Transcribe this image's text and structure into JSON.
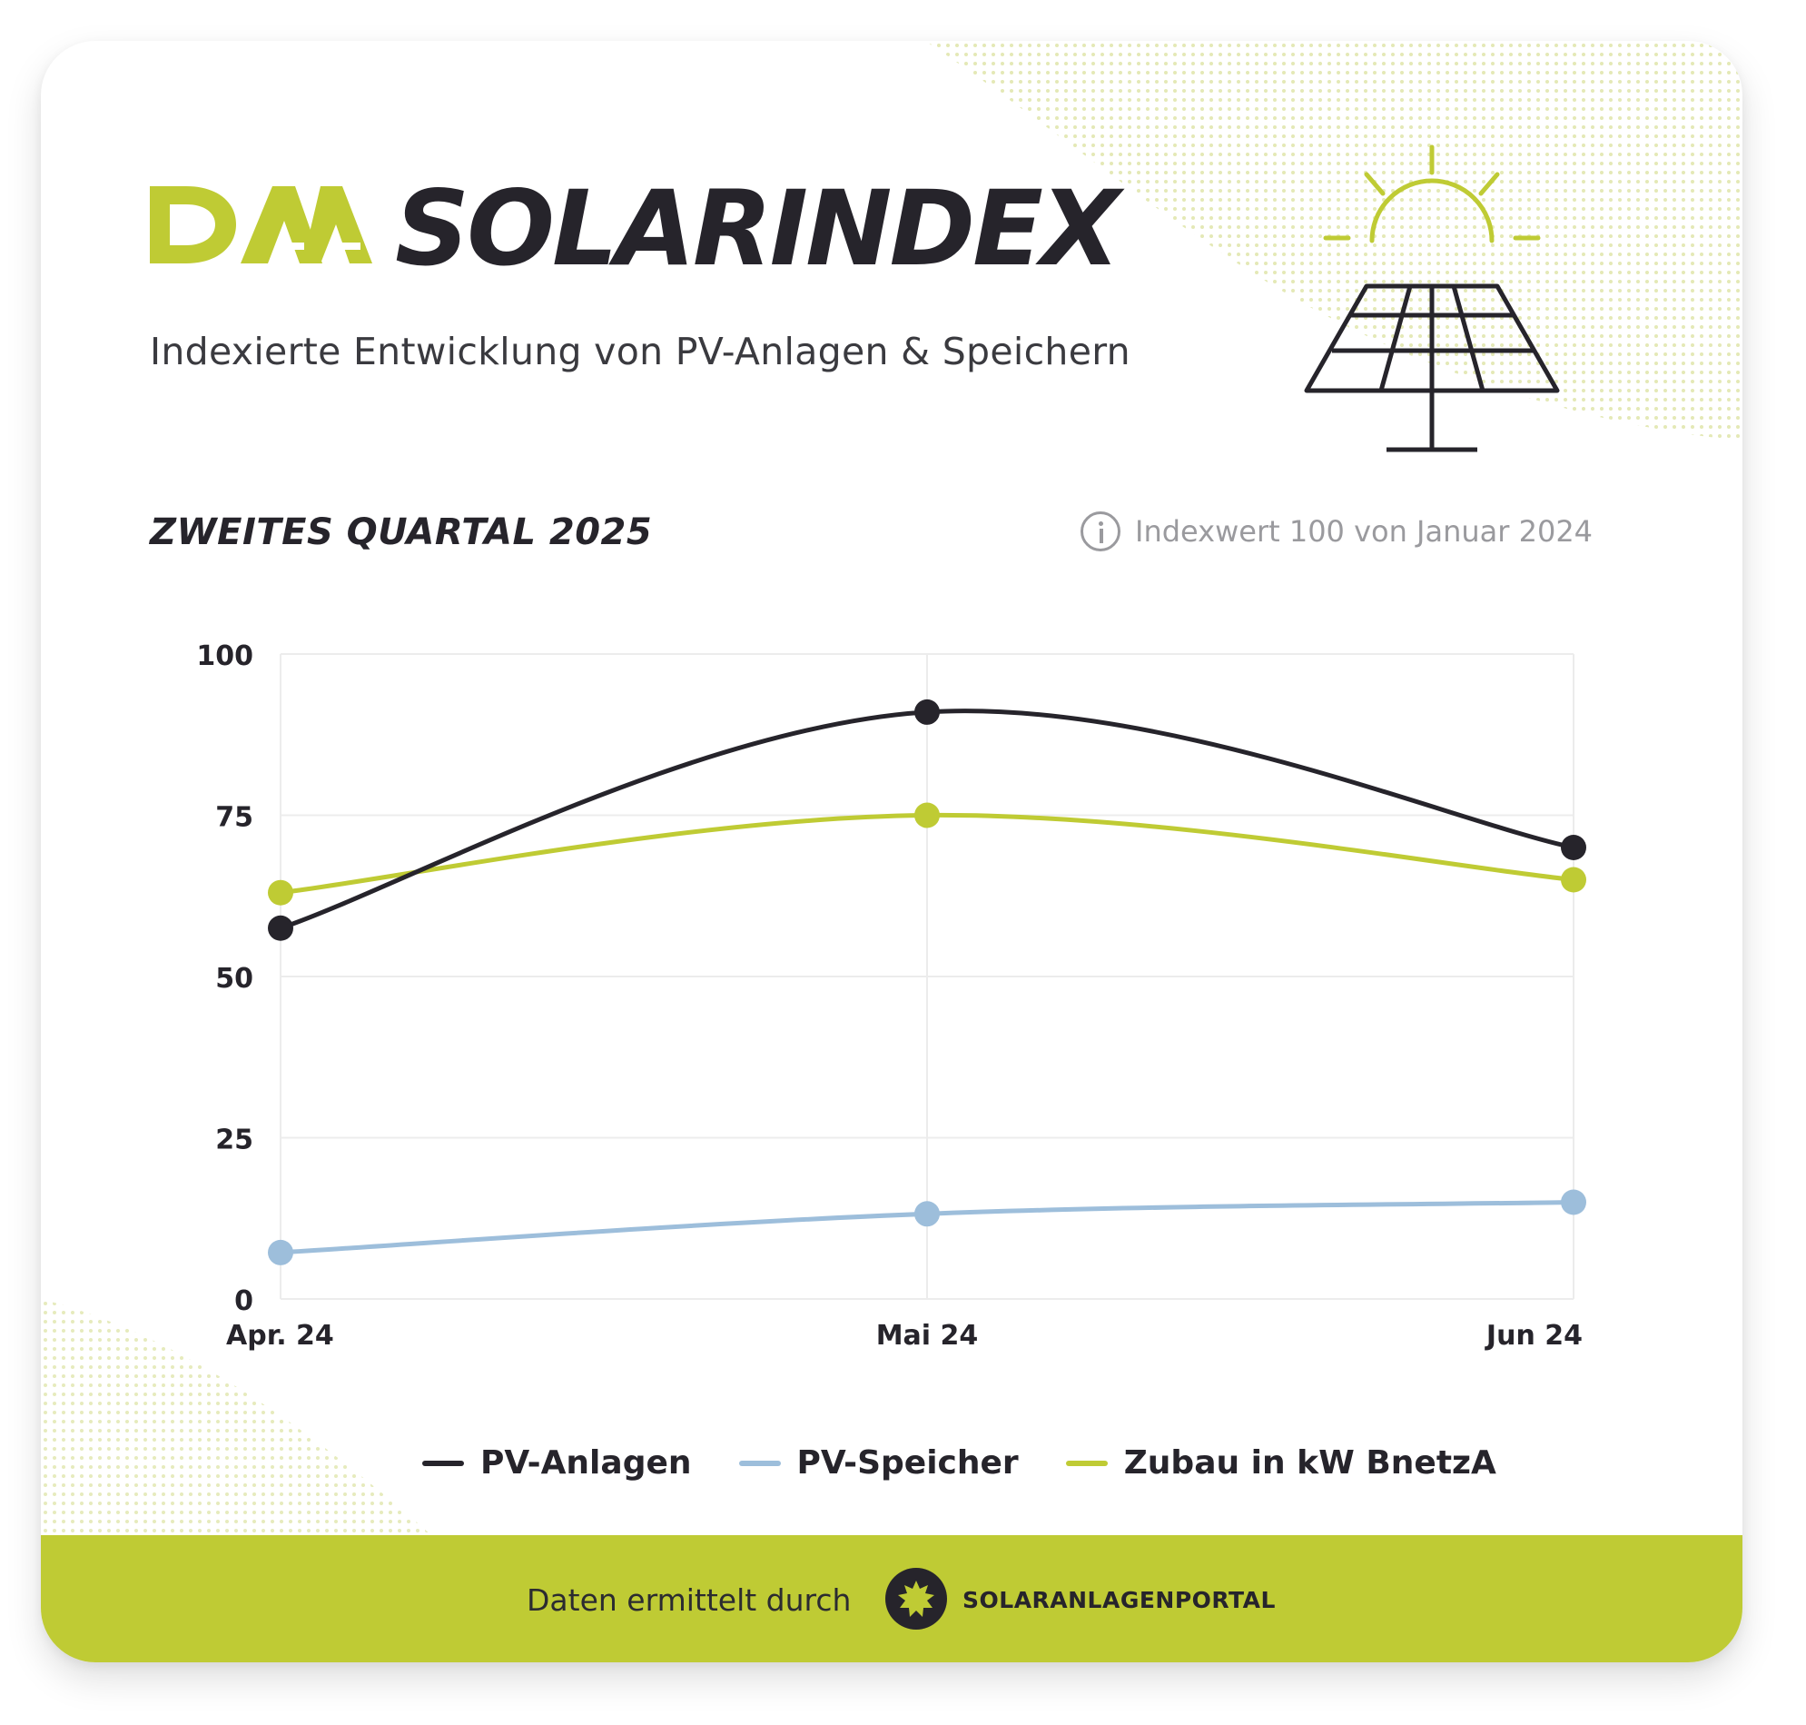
{
  "header": {
    "logo_text": "DAA",
    "title": "SOLARINDEX",
    "subtitle": "Indexierte Entwicklung von PV-Anlagen & Speichern"
  },
  "section": {
    "period": "ZWEITES QUARTAL 2025",
    "index_note": "Indexwert 100 von Januar 2024"
  },
  "chart_data": {
    "type": "line",
    "categories": [
      "Apr. 24",
      "Mai 24",
      "Jun 24"
    ],
    "y_ticks": [
      "0",
      "25",
      "50",
      "75",
      "100"
    ],
    "ylim": [
      0,
      100
    ],
    "grid": true,
    "legend_position": "bottom",
    "series": [
      {
        "name": "PV-Anlagen",
        "color": "#26242b",
        "values": [
          57.5,
          91,
          70
        ]
      },
      {
        "name": "PV-Speicher",
        "color": "#9dbedb",
        "values": [
          7.2,
          13.2,
          15
        ]
      },
      {
        "name": "Zubau in kW BnetzA",
        "color": "#bfcb34",
        "values": [
          63,
          75,
          65
        ]
      }
    ]
  },
  "colors": {
    "accent": "#bfcb34",
    "dark": "#26242b"
  },
  "footer": {
    "prefix": "Daten ermittelt durch",
    "brand": "SOLARANLAGENPORTAL"
  }
}
